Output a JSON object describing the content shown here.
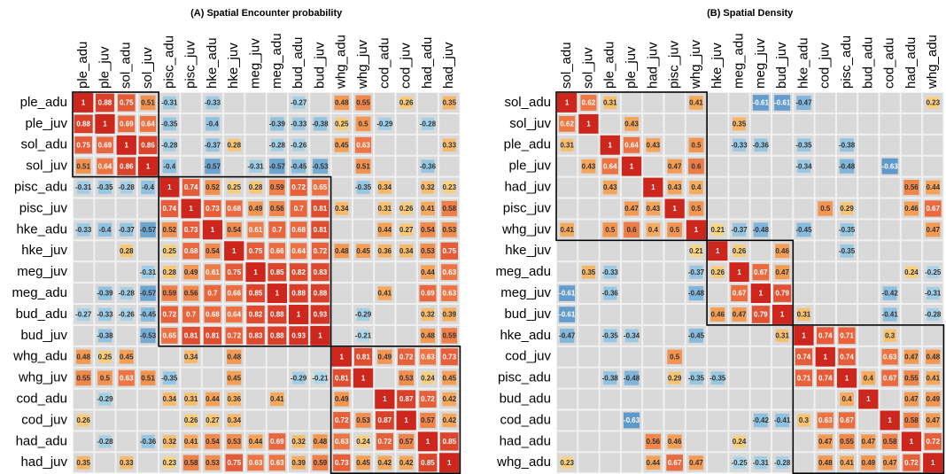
{
  "chart_data": [
    {
      "type": "heatmap",
      "title": "(A) Spatial Encounter probability",
      "x": [
        "ple_adu",
        "ple_juv",
        "sol_adu",
        "sol_juv",
        "pisc_adu",
        "pisc_juv",
        "hke_adu",
        "hke_juv",
        "meg_juv",
        "meg_adu",
        "bud_adu",
        "bud_juv",
        "whg_adu",
        "whg_juv",
        "cod_adu",
        "cod_juv",
        "had_adu",
        "had_juv"
      ],
      "y": [
        "ple_adu",
        "ple_juv",
        "sol_adu",
        "sol_juv",
        "pisc_adu",
        "pisc_juv",
        "hke_adu",
        "hke_juv",
        "meg_juv",
        "meg_adu",
        "bud_adu",
        "bud_juv",
        "whg_adu",
        "whg_juv",
        "cod_adu",
        "cod_juv",
        "had_adu",
        "had_juv"
      ],
      "values": [
        [
          1,
          0.88,
          0.75,
          0.51,
          -0.31,
          null,
          -0.33,
          null,
          null,
          null,
          -0.27,
          null,
          0.48,
          0.55,
          null,
          0.26,
          null,
          0.35
        ],
        [
          0.88,
          1,
          0.69,
          0.64,
          -0.35,
          null,
          -0.4,
          null,
          null,
          -0.39,
          -0.33,
          -0.38,
          0.25,
          0.5,
          -0.29,
          null,
          -0.28,
          null
        ],
        [
          0.75,
          0.69,
          1,
          0.86,
          -0.28,
          null,
          -0.37,
          0.28,
          null,
          -0.28,
          -0.26,
          null,
          0.45,
          0.63,
          null,
          null,
          null,
          0.33
        ],
        [
          0.51,
          0.64,
          0.86,
          1,
          -0.4,
          null,
          -0.57,
          null,
          -0.31,
          -0.57,
          -0.45,
          -0.53,
          null,
          0.51,
          null,
          null,
          -0.36,
          null
        ],
        [
          -0.31,
          -0.35,
          -0.28,
          -0.4,
          1,
          0.74,
          0.52,
          0.25,
          0.28,
          0.59,
          0.72,
          0.65,
          null,
          -0.35,
          0.34,
          null,
          0.32,
          0.23
        ],
        [
          null,
          null,
          null,
          null,
          0.74,
          1,
          0.73,
          0.68,
          0.49,
          0.56,
          0.7,
          0.81,
          0.34,
          null,
          0.31,
          0.26,
          0.41,
          0.58
        ],
        [
          -0.33,
          -0.4,
          -0.37,
          -0.57,
          0.52,
          0.73,
          1,
          0.54,
          0.61,
          0.7,
          0.68,
          0.81,
          null,
          null,
          0.44,
          0.27,
          0.54,
          0.53
        ],
        [
          null,
          null,
          0.28,
          null,
          0.25,
          0.68,
          0.54,
          1,
          0.75,
          0.66,
          0.64,
          0.72,
          0.48,
          0.45,
          0.36,
          0.34,
          0.53,
          0.75
        ],
        [
          null,
          null,
          null,
          -0.31,
          0.28,
          0.49,
          0.61,
          0.75,
          1,
          0.85,
          0.82,
          0.83,
          null,
          null,
          null,
          null,
          0.44,
          0.63
        ],
        [
          null,
          -0.39,
          -0.28,
          -0.57,
          0.59,
          0.56,
          0.7,
          0.66,
          0.85,
          1,
          0.88,
          0.88,
          null,
          null,
          0.41,
          null,
          0.69,
          0.63
        ],
        [
          -0.27,
          -0.33,
          -0.26,
          -0.45,
          0.72,
          0.7,
          0.68,
          0.64,
          0.82,
          0.88,
          1,
          0.93,
          null,
          -0.29,
          null,
          null,
          0.32,
          0.39
        ],
        [
          null,
          -0.38,
          null,
          -0.53,
          0.65,
          0.81,
          0.81,
          0.72,
          0.83,
          0.88,
          0.93,
          1,
          null,
          -0.21,
          null,
          null,
          0.48,
          0.59
        ],
        [
          0.48,
          0.25,
          0.45,
          null,
          null,
          0.34,
          null,
          0.48,
          null,
          null,
          null,
          null,
          1,
          0.81,
          0.49,
          0.72,
          0.63,
          0.73
        ],
        [
          0.55,
          0.5,
          0.63,
          0.51,
          -0.35,
          null,
          null,
          0.45,
          null,
          null,
          -0.29,
          -0.21,
          0.81,
          1,
          null,
          0.53,
          0.24,
          0.45
        ],
        [
          null,
          -0.29,
          null,
          null,
          0.34,
          0.31,
          0.44,
          0.36,
          null,
          0.41,
          null,
          null,
          0.49,
          null,
          1,
          0.87,
          0.72,
          0.42
        ],
        [
          0.26,
          null,
          null,
          null,
          null,
          0.26,
          0.27,
          0.34,
          null,
          null,
          null,
          null,
          0.72,
          0.53,
          0.87,
          1,
          0.57,
          0.42
        ],
        [
          null,
          -0.28,
          null,
          -0.36,
          0.32,
          0.41,
          0.54,
          0.53,
          0.44,
          0.69,
          0.32,
          0.48,
          0.63,
          0.24,
          0.72,
          0.57,
          1,
          0.85
        ],
        [
          0.35,
          null,
          0.33,
          null,
          0.23,
          0.58,
          0.53,
          0.75,
          0.63,
          0.63,
          0.39,
          0.59,
          0.73,
          0.45,
          0.42,
          0.42,
          0.85,
          1
        ]
      ]
    },
    {
      "type": "heatmap",
      "title": "(B) Spatial Density",
      "x": [
        "sol_adu",
        "sol_juv",
        "ple_adu",
        "ple_juv",
        "had_juv",
        "pisc_juv",
        "whg_juv",
        "hke_juv",
        "meg_adu",
        "meg_juv",
        "bud_juv",
        "hke_adu",
        "cod_juv",
        "pisc_adu",
        "bud_adu",
        "cod_adu",
        "had_adu",
        "whg_adu"
      ],
      "y": [
        "sol_adu",
        "sol_juv",
        "ple_adu",
        "ple_juv",
        "had_juv",
        "pisc_juv",
        "whg_juv",
        "hke_juv",
        "meg_adu",
        "meg_juv",
        "bud_juv",
        "hke_adu",
        "cod_juv",
        "pisc_adu",
        "bud_adu",
        "cod_adu",
        "had_adu",
        "whg_adu"
      ],
      "values": [
        [
          1,
          0.62,
          0.31,
          null,
          null,
          null,
          0.41,
          null,
          null,
          -0.61,
          -0.61,
          -0.47,
          null,
          null,
          null,
          null,
          null,
          0.23
        ],
        [
          0.62,
          1,
          null,
          0.43,
          null,
          null,
          null,
          null,
          0.35,
          null,
          null,
          null,
          null,
          null,
          null,
          null,
          null,
          null
        ],
        [
          0.31,
          null,
          1,
          0.64,
          0.43,
          null,
          0.5,
          null,
          -0.33,
          -0.36,
          null,
          -0.35,
          null,
          -0.38,
          null,
          null,
          null,
          null
        ],
        [
          null,
          0.43,
          0.64,
          1,
          null,
          0.47,
          0.6,
          null,
          null,
          null,
          null,
          -0.34,
          null,
          -0.48,
          null,
          -0.63,
          null,
          null
        ],
        [
          null,
          null,
          0.43,
          null,
          1,
          0.43,
          0.4,
          null,
          null,
          null,
          null,
          null,
          null,
          null,
          null,
          null,
          0.56,
          0.44
        ],
        [
          null,
          null,
          null,
          0.47,
          0.43,
          1,
          0.5,
          null,
          null,
          null,
          null,
          null,
          0.5,
          0.29,
          null,
          null,
          0.46,
          0.67
        ],
        [
          0.41,
          null,
          0.5,
          0.6,
          0.4,
          0.5,
          1,
          0.21,
          -0.37,
          -0.48,
          null,
          -0.45,
          null,
          -0.35,
          null,
          null,
          null,
          0.47
        ],
        [
          null,
          null,
          null,
          null,
          null,
          null,
          0.21,
          1,
          0.26,
          null,
          0.46,
          null,
          null,
          -0.35,
          null,
          null,
          null,
          null
        ],
        [
          null,
          0.35,
          -0.33,
          null,
          null,
          null,
          -0.37,
          0.26,
          1,
          0.67,
          0.47,
          null,
          null,
          null,
          null,
          null,
          0.24,
          -0.25
        ],
        [
          -0.61,
          null,
          -0.36,
          null,
          null,
          null,
          -0.48,
          null,
          0.67,
          1,
          0.79,
          null,
          null,
          null,
          null,
          -0.42,
          null,
          -0.31
        ],
        [
          -0.61,
          null,
          null,
          null,
          null,
          null,
          null,
          0.46,
          0.47,
          0.79,
          1,
          0.31,
          null,
          null,
          null,
          -0.41,
          null,
          -0.28
        ],
        [
          -0.47,
          null,
          -0.35,
          -0.34,
          null,
          null,
          -0.45,
          null,
          null,
          null,
          0.31,
          1,
          0.74,
          0.71,
          null,
          0.3,
          null,
          null
        ],
        [
          null,
          null,
          null,
          null,
          null,
          0.5,
          null,
          null,
          null,
          null,
          null,
          0.74,
          1,
          0.74,
          null,
          0.63,
          0.47,
          0.48
        ],
        [
          null,
          null,
          -0.38,
          -0.48,
          null,
          0.29,
          -0.35,
          -0.35,
          null,
          null,
          null,
          0.71,
          0.74,
          1,
          0.4,
          0.67,
          0.55,
          0.41
        ],
        [
          null,
          null,
          null,
          null,
          null,
          null,
          null,
          null,
          null,
          null,
          null,
          null,
          null,
          0.4,
          1,
          null,
          0.47,
          0.49
        ],
        [
          null,
          null,
          null,
          -0.63,
          null,
          null,
          null,
          null,
          null,
          -0.42,
          -0.41,
          0.3,
          0.63,
          0.67,
          null,
          1,
          0.58,
          0.47
        ],
        [
          null,
          null,
          null,
          null,
          0.56,
          0.46,
          null,
          null,
          0.24,
          null,
          null,
          null,
          0.47,
          0.55,
          0.47,
          0.58,
          1,
          0.72
        ],
        [
          0.23,
          null,
          null,
          null,
          0.44,
          0.67,
          0.47,
          null,
          -0.25,
          -0.31,
          -0.28,
          null,
          0.48,
          0.41,
          0.49,
          0.47,
          0.72,
          1
        ]
      ]
    }
  ]
}
